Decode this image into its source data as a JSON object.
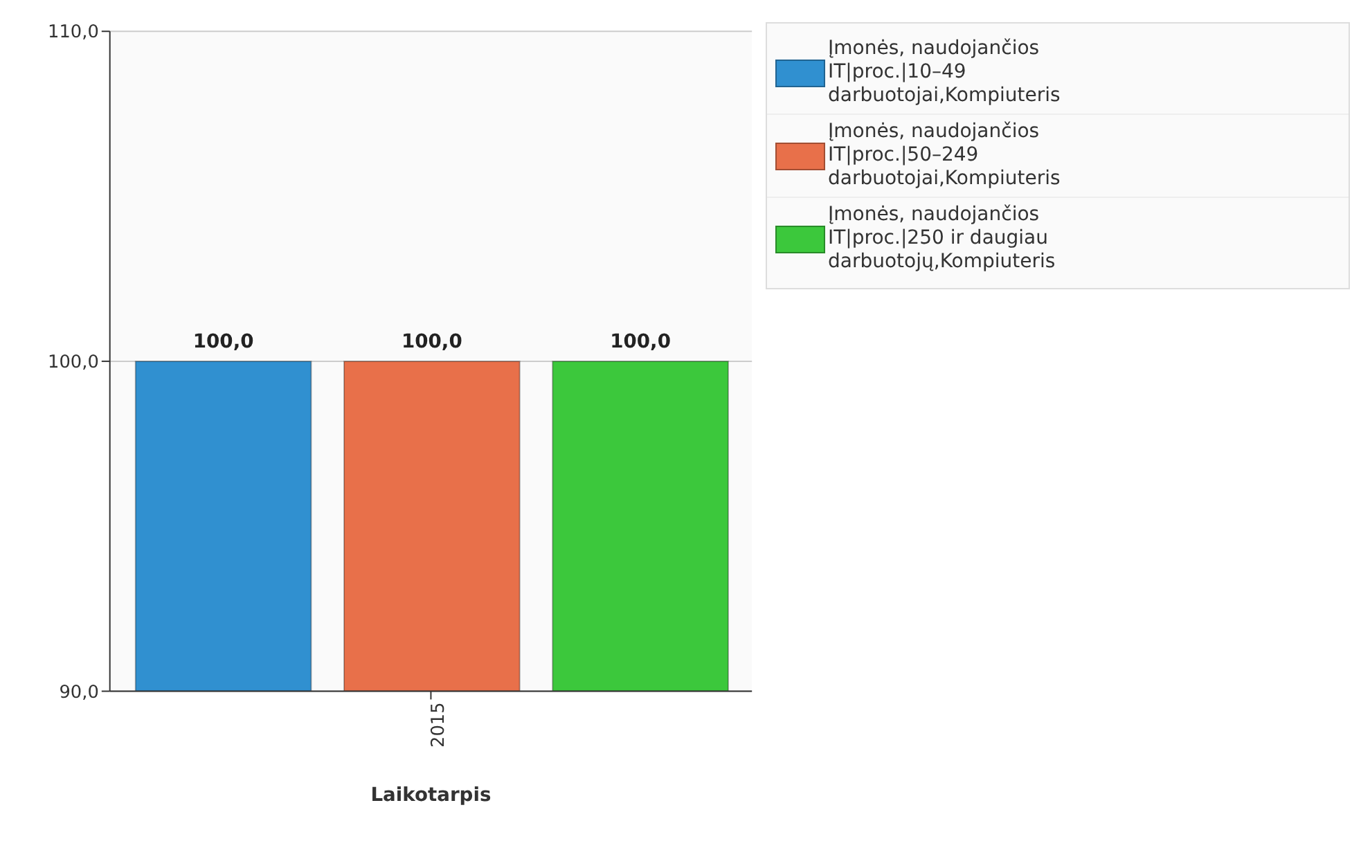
{
  "chart_data": {
    "type": "bar",
    "xlabel": "Laikotarpis",
    "categories": [
      "2015"
    ],
    "series": [
      {
        "name": "Įmonės, naudojančios IT|proc.|10–49 darbuotojai,Kompiuteris",
        "color": "#3090d0",
        "values": [
          100
        ],
        "value_labels": [
          "100,0"
        ]
      },
      {
        "name": "Įmonės, naudojančios IT|proc.|50–249 darbuotojai,Kompiuteris",
        "color": "#e8704a",
        "values": [
          100
        ],
        "value_labels": [
          "100,0"
        ]
      },
      {
        "name": "Įmonės, naudojančios IT|proc.|250 ir daugiau darbuotojų,Kompiuteris",
        "color": "#3cc83c",
        "values": [
          100
        ],
        "value_labels": [
          "100,0"
        ]
      }
    ],
    "ylim": [
      90,
      110
    ],
    "yticks": [
      {
        "value": 90,
        "label": "90,0"
      },
      {
        "value": 100,
        "label": "100,0"
      },
      {
        "value": 110,
        "label": "110,0"
      }
    ],
    "grid": "y",
    "legend": "top right"
  }
}
